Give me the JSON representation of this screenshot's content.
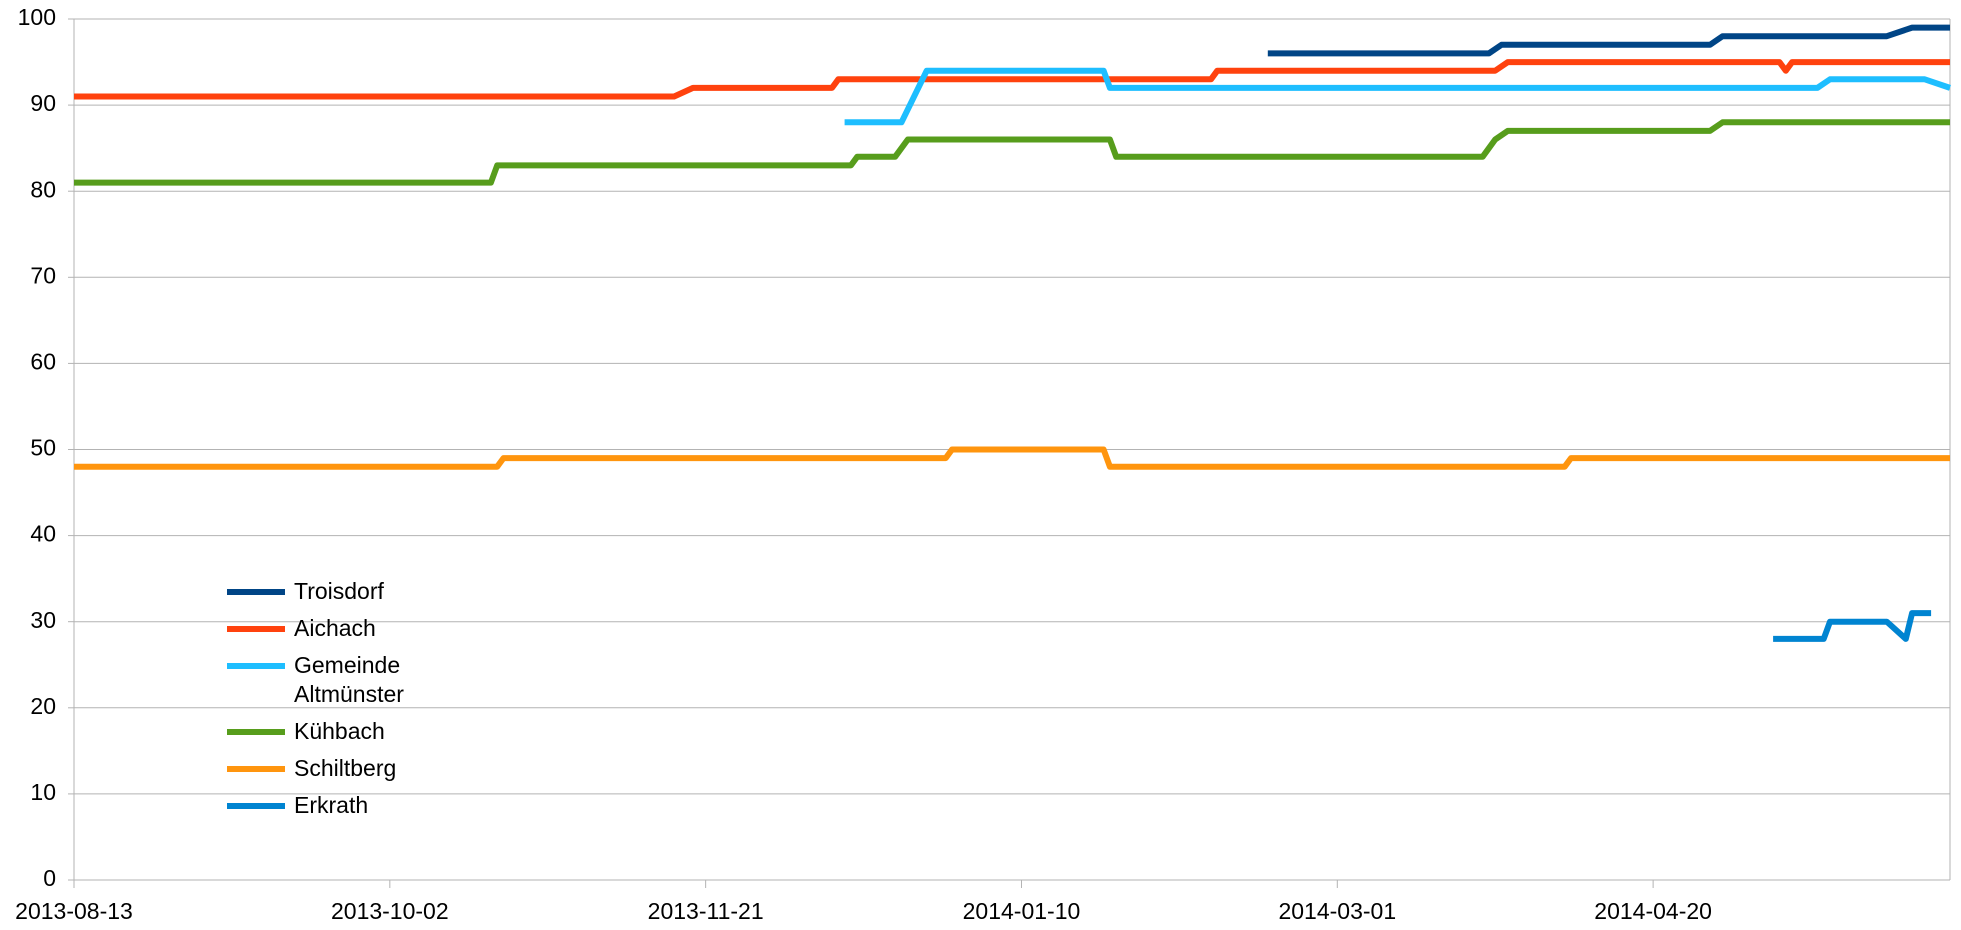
{
  "chart_data": {
    "type": "line",
    "xlim": [
      "2013-08-13",
      "2014-06-06"
    ],
    "xticks": [
      "2013-08-13",
      "2013-10-02",
      "2013-11-21",
      "2014-01-10",
      "2014-03-01",
      "2014-04-20"
    ],
    "ylim": [
      0,
      100
    ],
    "yticks": [
      0,
      10,
      20,
      30,
      40,
      50,
      60,
      70,
      80,
      90,
      100
    ],
    "grid": true,
    "legend": "left",
    "series": [
      {
        "name": "Troisdorf",
        "color": "#004586",
        "x": [
          "2014-02-18",
          "2014-03-25",
          "2014-03-27",
          "2014-04-29",
          "2014-05-01",
          "2014-05-27",
          "2014-05-31",
          "2014-06-06"
        ],
        "values": [
          96,
          96,
          97,
          97,
          98,
          98,
          99,
          99
        ]
      },
      {
        "name": "Aichach",
        "color": "#ff420e",
        "x": [
          "2013-08-13",
          "2013-11-16",
          "2013-11-19",
          "2013-12-11",
          "2013-12-12",
          "2014-02-09",
          "2014-02-10",
          "2014-03-26",
          "2014-03-28",
          "2014-05-10",
          "2014-05-11",
          "2014-05-12",
          "2014-06-06"
        ],
        "values": [
          91,
          91,
          92,
          92,
          93,
          93,
          94,
          94,
          95,
          95,
          94,
          95,
          95
        ]
      },
      {
        "name": "Gemeinde Altmünster",
        "color": "#1ebeff",
        "x": [
          "2013-12-13",
          "2013-12-22",
          "2013-12-26",
          "2014-01-23",
          "2014-01-24",
          "2014-05-16",
          "2014-05-18",
          "2014-06-02",
          "2014-06-06"
        ],
        "values": [
          88,
          88,
          94,
          94,
          92,
          92,
          93,
          93,
          92
        ]
      },
      {
        "name": "Kühbach",
        "color": "#579d1c",
        "x": [
          "2013-08-13",
          "2013-10-18",
          "2013-10-19",
          "2013-12-14",
          "2013-12-15",
          "2013-12-21",
          "2013-12-23",
          "2014-01-24",
          "2014-01-25",
          "2014-03-24",
          "2014-03-26",
          "2014-03-28",
          "2014-04-29",
          "2014-05-01",
          "2014-06-06"
        ],
        "values": [
          81,
          81,
          83,
          83,
          84,
          84,
          86,
          86,
          84,
          84,
          86,
          87,
          87,
          88,
          88
        ]
      },
      {
        "name": "Schiltberg",
        "color": "#ff950e",
        "x": [
          "2013-08-13",
          "2013-10-19",
          "2013-10-20",
          "2013-12-29",
          "2013-12-30",
          "2014-01-23",
          "2014-01-24",
          "2014-04-06",
          "2014-04-07",
          "2014-06-06"
        ],
        "values": [
          48,
          48,
          49,
          49,
          50,
          50,
          48,
          48,
          49,
          49
        ]
      },
      {
        "name": "Erkrath",
        "color": "#0084d1",
        "x": [
          "2014-05-09",
          "2014-05-17",
          "2014-05-18",
          "2014-05-27",
          "2014-05-30",
          "2014-05-31",
          "2014-06-03"
        ],
        "values": [
          28,
          28,
          30,
          30,
          28,
          31,
          31
        ]
      }
    ]
  }
}
